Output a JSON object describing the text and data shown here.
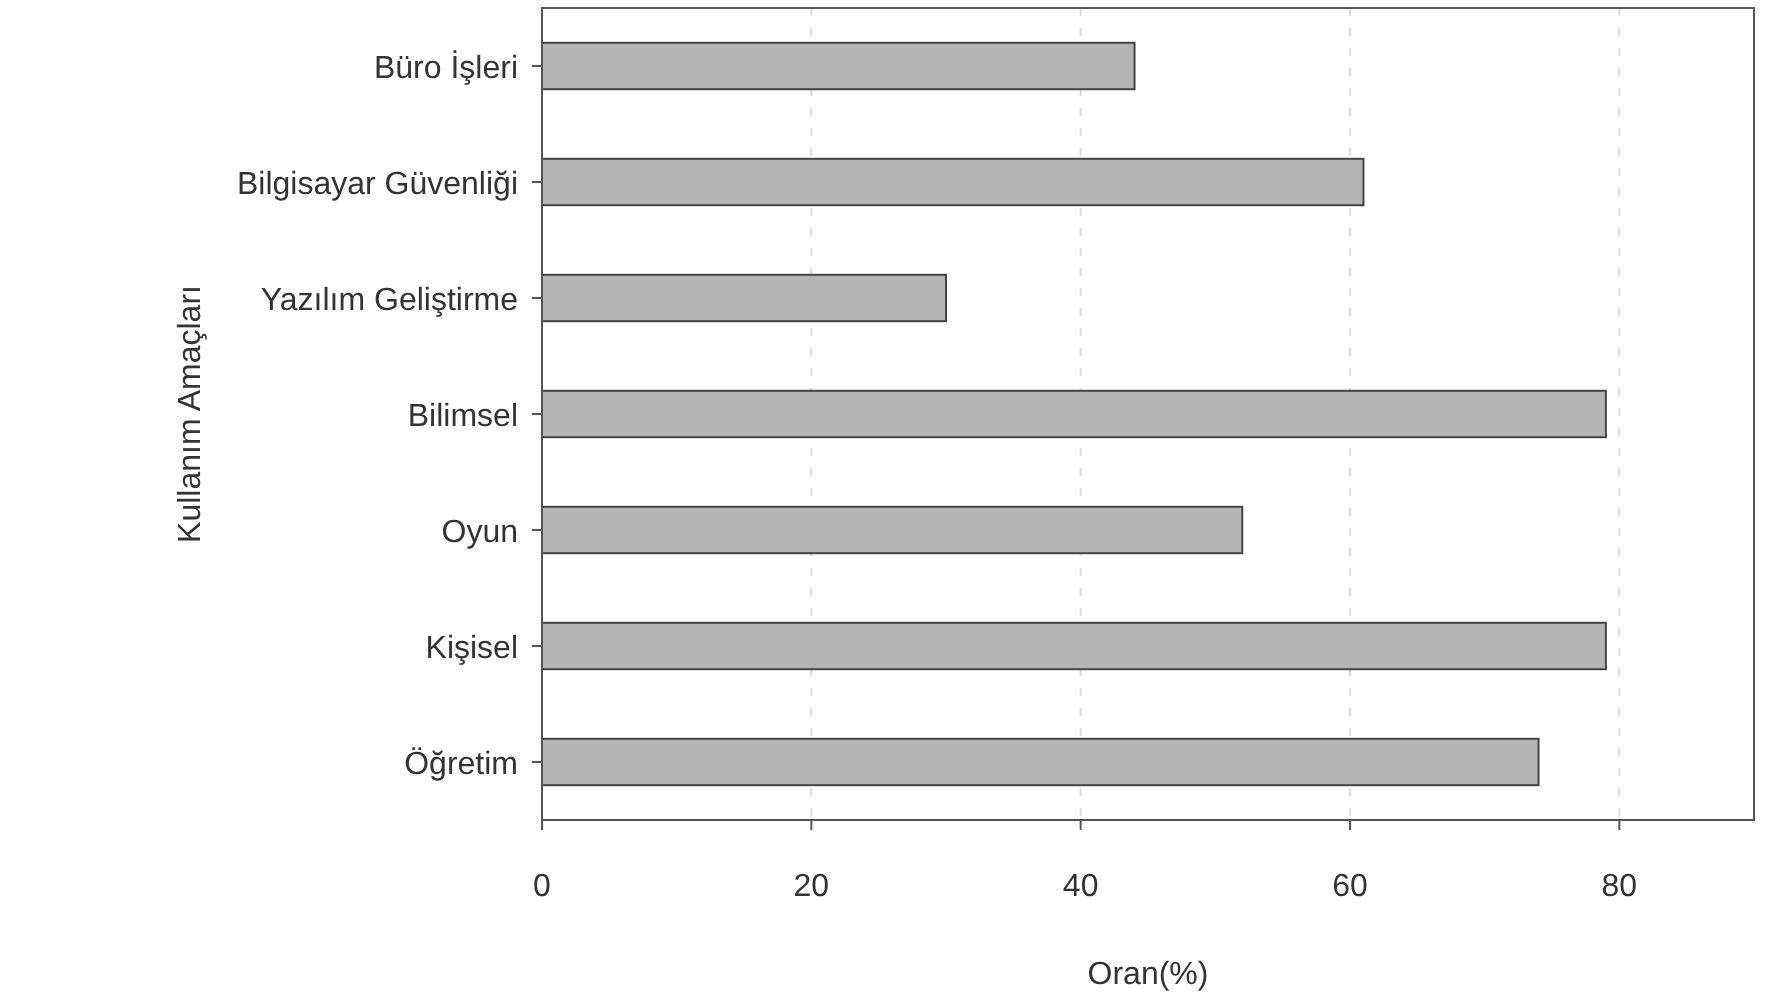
{
  "chart_data": {
    "type": "bar",
    "orientation": "horizontal",
    "xlabel": "Oran(%)",
    "ylabel": "Kullanım Amaçları",
    "categories": [
      "Büro İşleri",
      "Bilgisayar Güvenliği",
      "Yazılım Geliştirme",
      "Bilimsel",
      "Oyun",
      "Kişisel",
      "Öğretim"
    ],
    "values": [
      44,
      61,
      30,
      79,
      52,
      79,
      74
    ],
    "color": "#b4b4b4",
    "xlim": [
      0,
      90
    ],
    "xticks": [
      0,
      20,
      40,
      60,
      80
    ],
    "grid": "x"
  }
}
